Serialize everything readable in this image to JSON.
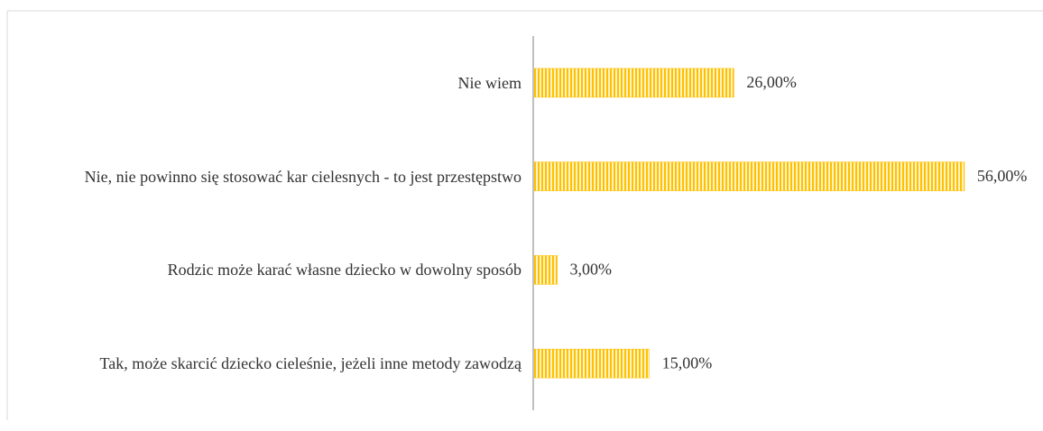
{
  "chart_data": {
    "type": "bar",
    "orientation": "horizontal",
    "categories": [
      "Nie wiem",
      "Nie, nie powinno się stosować kar cielesnych - to jest przestępstwo",
      "Rodzic może karać własne dziecko w dowolny sposób",
      "Tak, może skarcić dziecko cieleśnie, jeżeli inne metody zawodzą"
    ],
    "values": [
      26,
      56,
      3,
      15
    ],
    "value_labels": [
      "26,00%",
      "56,00%",
      "3,00%",
      "15,00%"
    ],
    "color": "#ffc000",
    "xlim": [
      0,
      60
    ]
  }
}
